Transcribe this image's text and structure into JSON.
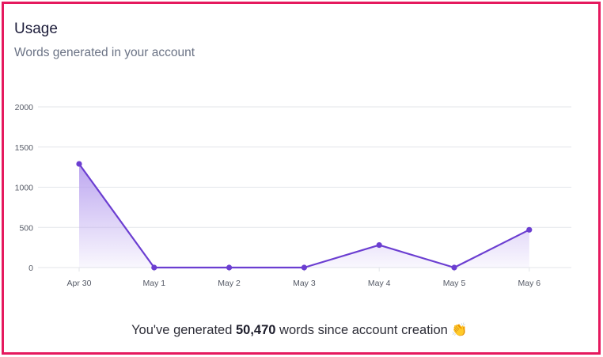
{
  "card": {
    "title": "Usage",
    "subtitle": "Words generated in your account"
  },
  "footer": {
    "prefix": "You've generated ",
    "count": "50,470",
    "suffix": " words since account creation ",
    "emoji": "👏"
  },
  "colors": {
    "line": "#6b3ed1",
    "point": "#6b3ed1",
    "fill_top": "#b9a2ef",
    "grid": "#e3e5ea",
    "frame_border": "#e5195e",
    "tick_text": "#555a66"
  },
  "chart_data": {
    "type": "area",
    "x": [
      "Apr 30",
      "May 1",
      "May 2",
      "May 3",
      "May 4",
      "May 5",
      "May 6"
    ],
    "values": [
      1290,
      0,
      0,
      0,
      280,
      0,
      470
    ],
    "y_ticks": [
      0,
      500,
      1000,
      1500,
      2000
    ],
    "ylim": [
      0,
      2000
    ],
    "grid": true,
    "legend": "none",
    "title": "",
    "xlabel": "",
    "ylabel": ""
  }
}
